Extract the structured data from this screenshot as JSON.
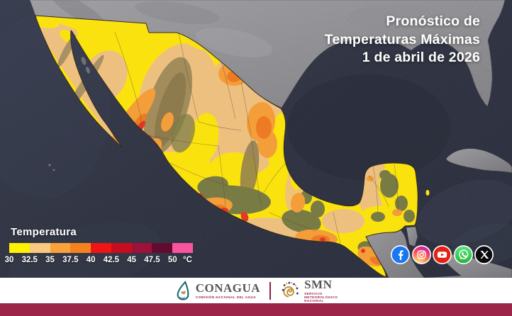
{
  "header": {
    "title_line1": "Pronóstico de",
    "title_line2": "Temperaturas Máximas",
    "title_line3": "1 de abril de 2026"
  },
  "legend": {
    "title": "Temperatura",
    "unit": "°C",
    "ticks": [
      "30",
      "32.5",
      "35",
      "37.5",
      "40",
      "42.5",
      "45",
      "47.5",
      "50"
    ],
    "colors": [
      "#FEF200",
      "#F8CA80",
      "#F9A23C",
      "#F5821E",
      "#F01414",
      "#C60D1E",
      "#9E1138",
      "#620B30",
      "#F9559E"
    ]
  },
  "map": {
    "ocean_color": "#2C303F",
    "foreign_land_color": "#8F9093",
    "mexico_base_color": "#FFE606",
    "region_colors": {
      "tan": "#F2C27E",
      "orange": "#F89E33",
      "deep_orange": "#F2791C",
      "red": "#E8321C",
      "olive": "#77793F",
      "sierra_brown": "#A28B58"
    }
  },
  "social": {
    "items": [
      {
        "name": "facebook",
        "color": "#1877F2"
      },
      {
        "name": "instagram",
        "color": "#D6249F"
      },
      {
        "name": "youtube",
        "color": "#E32214"
      },
      {
        "name": "whatsapp",
        "color": "#25D366"
      },
      {
        "name": "x",
        "color": "#0B0B0E"
      }
    ]
  },
  "footer": {
    "bar_color": "#9D2449",
    "conagua": {
      "name": "CONAGUA",
      "subtitle": "COMISIÓN NACIONAL DEL AGUA"
    },
    "smn": {
      "name": "SMN",
      "subtitle_line1": "SERVICIO",
      "subtitle_line2": "METEOROLÓGICO",
      "subtitle_line3": "NACIONAL"
    }
  }
}
